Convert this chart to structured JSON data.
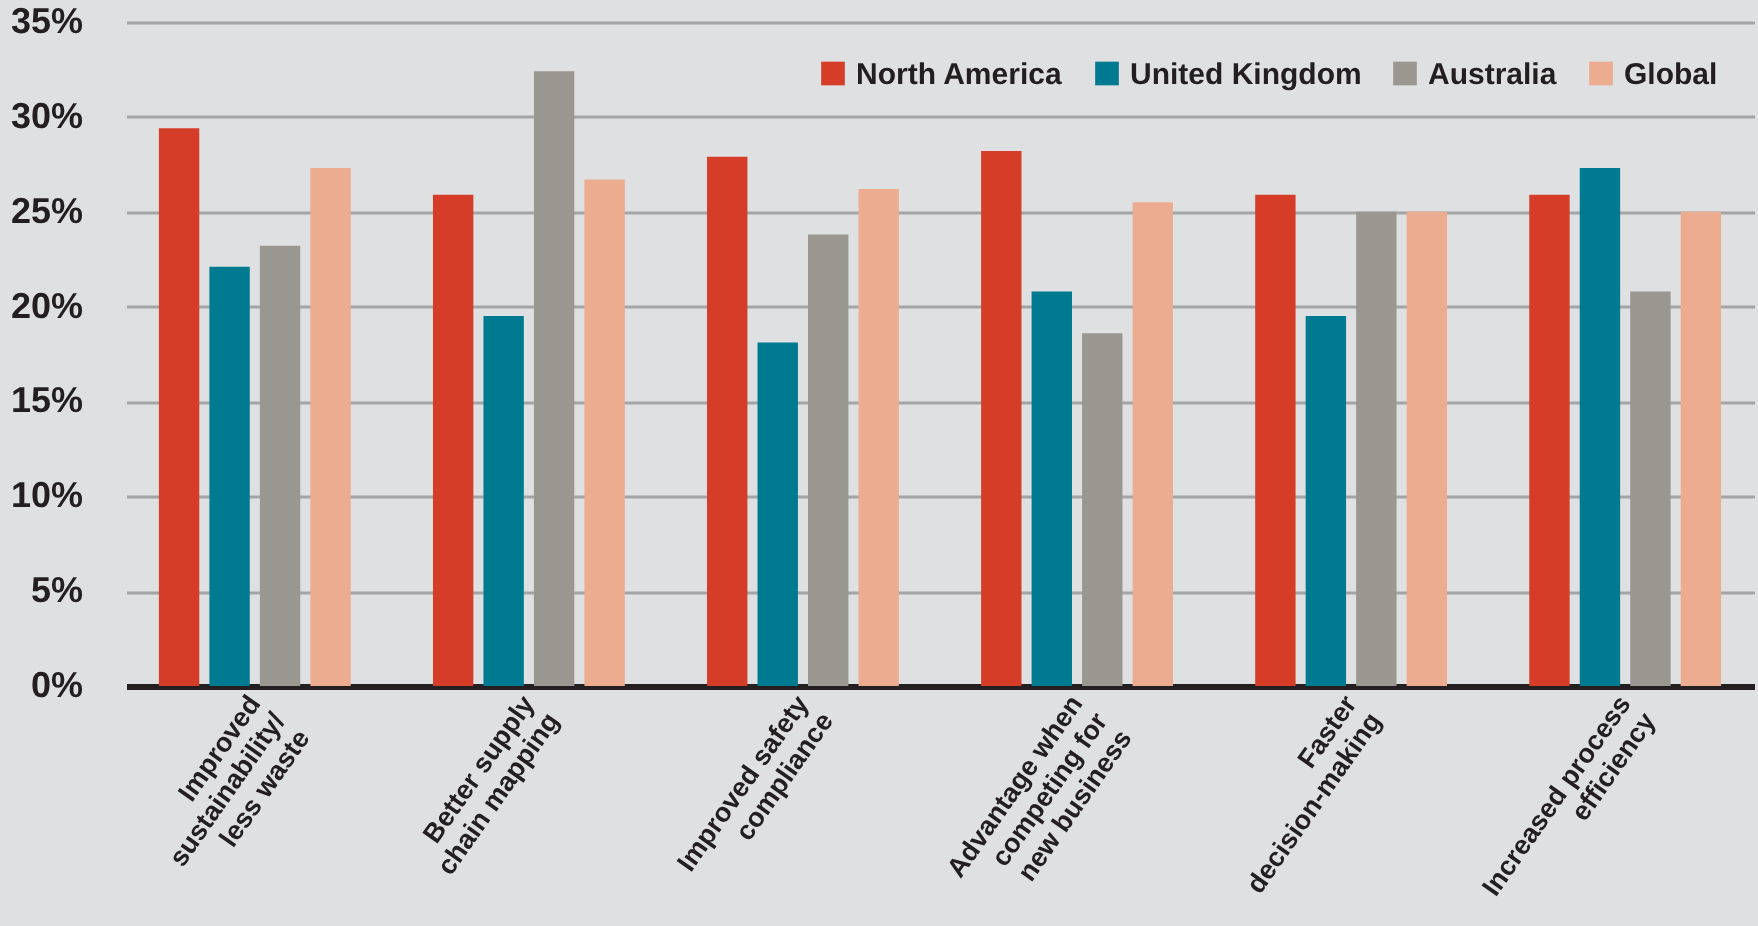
{
  "chart_data": {
    "type": "bar",
    "categories": [
      "Improved\nsustainability/\nless waste",
      "Better supply\nchain mapping",
      "Improved safety\ncompliance",
      "Advantage when\ncompeting for\nnew business",
      "Faster\ndecision-making",
      "Increased process\nefficiency"
    ],
    "series": [
      {
        "name": "North America",
        "color": "#d63d28",
        "values": [
          29.4,
          25.9,
          27.9,
          28.2,
          25.9,
          25.9
        ]
      },
      {
        "name": "United Kingdom",
        "color": "#007a91",
        "values": [
          22.1,
          19.5,
          18.1,
          20.8,
          19.5,
          27.3
        ]
      },
      {
        "name": "Australia",
        "color": "#9a9690",
        "values": [
          23.2,
          32.4,
          23.8,
          18.6,
          25.0,
          20.8
        ]
      },
      {
        "name": "Global",
        "color": "#ecac8f",
        "values": [
          27.3,
          26.7,
          26.2,
          25.5,
          25.0,
          25.0
        ]
      }
    ],
    "ylim": [
      0,
      35
    ],
    "yticks": [
      {
        "value": 0,
        "label": "0%"
      },
      {
        "value": 5,
        "label": "5%"
      },
      {
        "value": 10,
        "label": "10%"
      },
      {
        "value": 15,
        "label": "15%"
      },
      {
        "value": 20,
        "label": "20%"
      },
      {
        "value": 25,
        "label": "25%"
      },
      {
        "value": 30,
        "label": "30%"
      },
      {
        "value": 35,
        "label": "35%"
      }
    ],
    "grid": "y",
    "legend": "top right"
  }
}
